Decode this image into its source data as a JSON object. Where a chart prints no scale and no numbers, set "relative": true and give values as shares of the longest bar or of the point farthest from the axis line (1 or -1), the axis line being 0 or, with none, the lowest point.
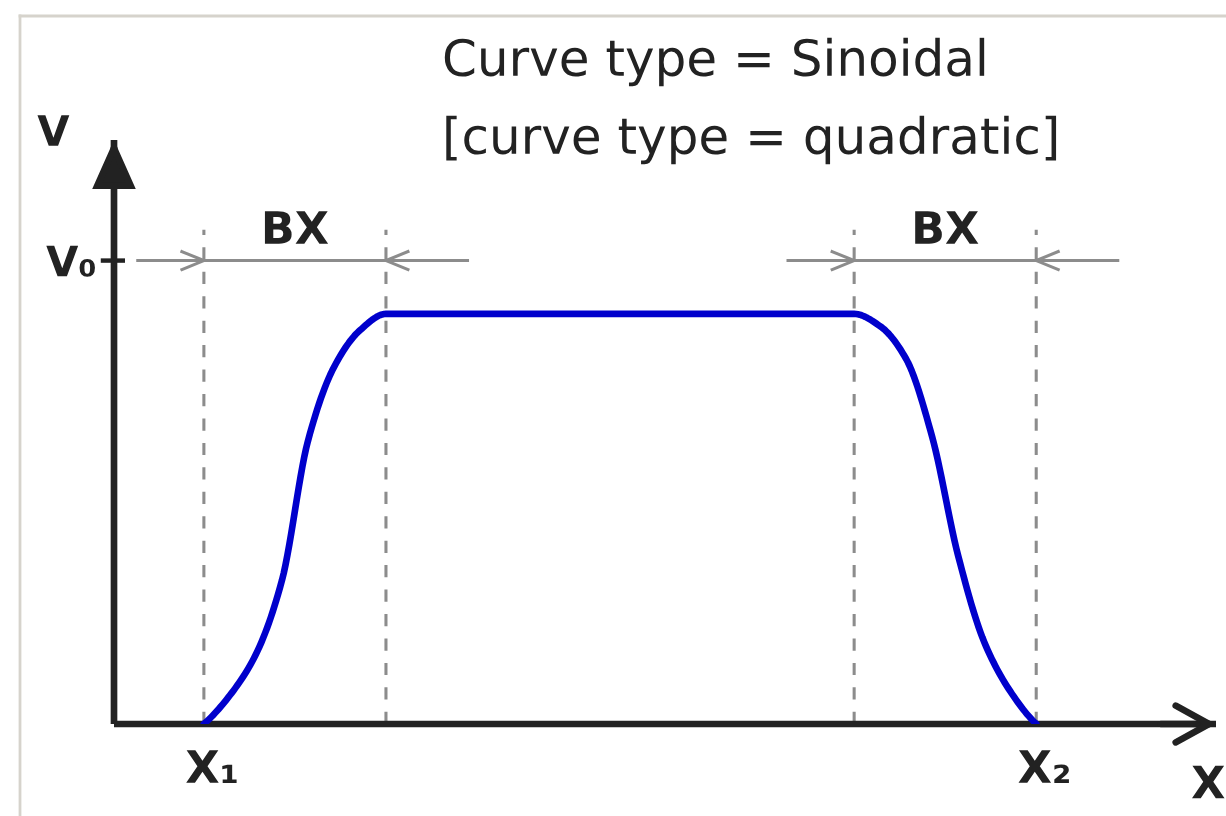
{
  "chart_data": {
    "type": "line",
    "title": "Curve type = Sinoidal",
    "subtitle": "[curve type = quadratic]",
    "xlabel": "X",
    "ylabel": "V",
    "relative": true,
    "categories": [
      "X₁",
      null,
      null,
      null,
      null,
      null,
      null,
      null,
      null,
      null,
      null,
      null,
      null,
      null,
      null,
      null,
      null,
      null,
      null,
      null,
      null,
      null,
      null,
      null,
      null,
      null,
      null,
      null,
      null,
      null,
      null,
      null,
      "X₂"
    ],
    "series": [
      {
        "color": "#0000cc",
        "values": [
          0,
          0.07,
          0.17,
          0.35,
          0.69,
          0.87,
          0.96,
          1,
          1,
          1,
          1,
          1,
          1,
          1,
          1,
          1,
          1,
          1,
          1,
          1,
          1,
          1,
          1,
          1,
          1,
          1,
          0.97,
          0.89,
          0.7,
          0.41,
          0.2,
          0.08,
          0
        ]
      }
    ],
    "ref_lines": [
      {
        "axis": "y",
        "value": 1.13,
        "label": "V₀"
      }
    ],
    "annotations": [
      "BX",
      "BX"
    ],
    "grid": "x",
    "line_style": "solid"
  }
}
